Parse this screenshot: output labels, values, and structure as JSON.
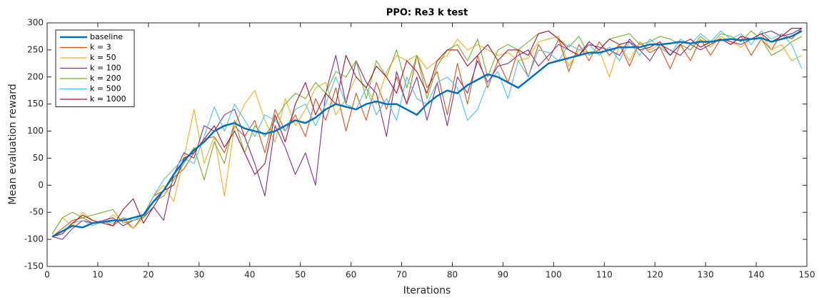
{
  "chart_data": {
    "type": "line",
    "title": "PPO: Re3 k test",
    "xlabel": "Iterations",
    "ylabel": "Mean evaluation reward",
    "xlim": [
      0,
      150
    ],
    "ylim": [
      -150,
      300
    ],
    "xticks": [
      0,
      10,
      20,
      30,
      40,
      50,
      60,
      70,
      80,
      90,
      100,
      110,
      120,
      130,
      140,
      150
    ],
    "yticks": [
      -150,
      -100,
      -50,
      0,
      50,
      100,
      150,
      200,
      250,
      300
    ],
    "grid": false,
    "legend": "northwest",
    "x": [
      1,
      3,
      5,
      7,
      9,
      11,
      13,
      15,
      17,
      19,
      21,
      23,
      25,
      27,
      29,
      31,
      33,
      35,
      37,
      39,
      41,
      43,
      45,
      47,
      49,
      51,
      53,
      55,
      57,
      59,
      61,
      63,
      65,
      67,
      69,
      71,
      73,
      75,
      77,
      79,
      81,
      83,
      85,
      87,
      89,
      91,
      93,
      95,
      97,
      99,
      101,
      103,
      105,
      107,
      109,
      111,
      113,
      115,
      117,
      119,
      121,
      123,
      125,
      127,
      129,
      131,
      133,
      135,
      137,
      139,
      141,
      143,
      145,
      147,
      149
    ],
    "series": [
      {
        "name": "baseline",
        "color": "#0072BD",
        "values": [
          -95,
          -85,
          -75,
          -78,
          -70,
          -68,
          -65,
          -65,
          -60,
          -55,
          -30,
          -10,
          20,
          45,
          65,
          80,
          100,
          110,
          115,
          105,
          100,
          95,
          100,
          110,
          120,
          115,
          125,
          140,
          150,
          145,
          140,
          150,
          155,
          150,
          150,
          140,
          130,
          150,
          165,
          175,
          170,
          185,
          195,
          205,
          200,
          190,
          180,
          195,
          210,
          225,
          230,
          235,
          240,
          245,
          245,
          250,
          255,
          255,
          255,
          260,
          260,
          262,
          265,
          262,
          265,
          265,
          268,
          270,
          268,
          270,
          272,
          265,
          270,
          275,
          285
        ]
      },
      {
        "name": "k = 3",
        "color": "#D95319",
        "values": [
          -95,
          -80,
          -65,
          -60,
          -70,
          -65,
          -75,
          -60,
          -80,
          -55,
          -20,
          -10,
          15,
          30,
          60,
          85,
          90,
          60,
          110,
          90,
          120,
          60,
          140,
          100,
          130,
          90,
          160,
          120,
          180,
          100,
          170,
          120,
          190,
          140,
          200,
          150,
          240,
          180,
          210,
          130,
          225,
          150,
          240,
          180,
          230,
          190,
          250,
          200,
          260,
          230,
          270,
          210,
          260,
          230,
          265,
          240,
          260,
          220,
          265,
          245,
          255,
          215,
          260,
          230,
          270,
          240,
          270,
          260,
          275,
          240,
          270,
          250,
          280,
          270,
          290
        ]
      },
      {
        "name": "k = 50",
        "color": "#EDB120",
        "values": [
          -90,
          -60,
          -75,
          -50,
          -65,
          -70,
          -55,
          -65,
          -80,
          -60,
          -20,
          0,
          -30,
          50,
          140,
          40,
          90,
          -20,
          110,
          150,
          175,
          120,
          80,
          160,
          110,
          140,
          180,
          190,
          130,
          160,
          200,
          180,
          150,
          210,
          240,
          230,
          240,
          215,
          230,
          240,
          270,
          250,
          260,
          250,
          240,
          245,
          230,
          235,
          265,
          270,
          275,
          220,
          250,
          245,
          250,
          200,
          260,
          230,
          265,
          250,
          260,
          240,
          260,
          250,
          270,
          255,
          275,
          265,
          255,
          270,
          280,
          250,
          260,
          230,
          240
        ]
      },
      {
        "name": "k = 100",
        "color": "#7E2F8E",
        "values": [
          -95,
          -100,
          -80,
          -65,
          -70,
          -65,
          -60,
          -75,
          -65,
          -60,
          -40,
          -65,
          20,
          60,
          50,
          110,
          100,
          130,
          140,
          90,
          40,
          -20,
          110,
          70,
          20,
          60,
          0,
          170,
          240,
          150,
          230,
          190,
          170,
          90,
          210,
          150,
          200,
          120,
          190,
          110,
          200,
          170,
          230,
          190,
          220,
          225,
          240,
          250,
          220,
          240,
          260,
          250,
          240,
          260,
          255,
          250,
          240,
          270,
          250,
          230,
          260,
          250,
          240,
          260,
          250,
          260,
          270,
          265,
          260,
          270,
          280,
          285,
          275,
          280,
          290
        ]
      },
      {
        "name": "k = 200",
        "color": "#77AC30",
        "values": [
          -90,
          -60,
          -50,
          -60,
          -55,
          -50,
          -45,
          -70,
          -65,
          -60,
          -30,
          -20,
          10,
          40,
          70,
          10,
          80,
          40,
          120,
          60,
          110,
          90,
          120,
          150,
          170,
          160,
          190,
          170,
          210,
          200,
          230,
          160,
          230,
          200,
          250,
          180,
          240,
          160,
          220,
          250,
          260,
          230,
          270,
          200,
          250,
          260,
          250,
          265,
          280,
          285,
          270,
          255,
          275,
          240,
          250,
          270,
          275,
          280,
          260,
          265,
          275,
          270,
          260,
          250,
          275,
          260,
          280,
          275,
          265,
          285,
          270,
          240,
          250,
          265,
          275
        ]
      },
      {
        "name": "k = 500",
        "color": "#4DBEEE",
        "values": [
          -95,
          -85,
          -70,
          -65,
          -75,
          -65,
          -70,
          -60,
          -65,
          -55,
          -20,
          10,
          30,
          50,
          40,
          90,
          145,
          100,
          150,
          120,
          90,
          130,
          120,
          100,
          140,
          150,
          110,
          150,
          200,
          150,
          140,
          180,
          130,
          160,
          120,
          200,
          160,
          150,
          190,
          200,
          180,
          120,
          140,
          190,
          210,
          160,
          230,
          200,
          250,
          245,
          230,
          260,
          250,
          260,
          240,
          255,
          230,
          265,
          240,
          270,
          255,
          240,
          270,
          260,
          280,
          265,
          285,
          270,
          280,
          260,
          285,
          270,
          280,
          260,
          215
        ]
      },
      {
        "name": "k = 1000",
        "color": "#A2142F",
        "values": [
          -95,
          -90,
          -70,
          -55,
          -65,
          -70,
          -75,
          -45,
          -25,
          -70,
          -40,
          -10,
          0,
          50,
          60,
          85,
          110,
          70,
          100,
          60,
          20,
          40,
          130,
          80,
          150,
          190,
          130,
          170,
          150,
          240,
          200,
          180,
          220,
          200,
          170,
          230,
          210,
          170,
          230,
          250,
          250,
          220,
          240,
          260,
          230,
          250,
          250,
          240,
          280,
          285,
          270,
          250,
          240,
          265,
          250,
          270,
          260,
          265,
          250,
          255,
          265,
          240,
          260,
          270,
          255,
          265,
          270,
          260,
          275,
          270,
          280,
          265,
          275,
          290,
          290
        ]
      }
    ]
  }
}
